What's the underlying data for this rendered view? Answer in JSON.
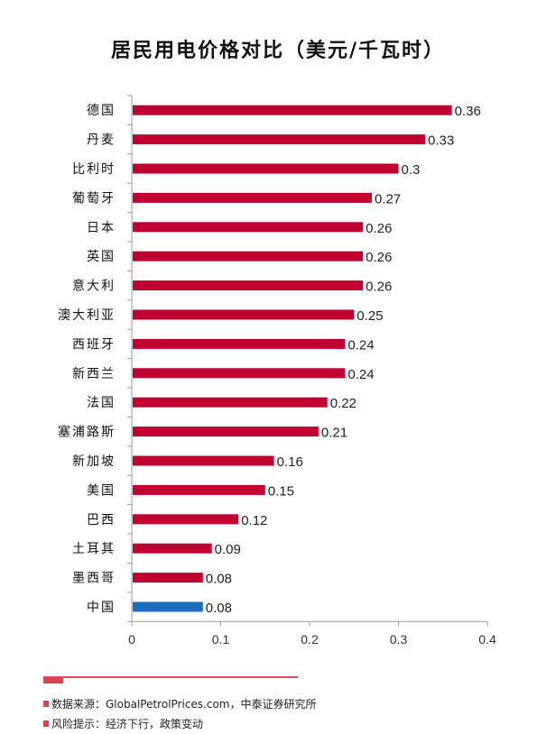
{
  "title": "居民用电价格对比（美元/千瓦时）",
  "colors": {
    "bar": "#c00030",
    "highlight": "#1a6ebd",
    "axis": "#999999"
  },
  "chart_data": {
    "type": "bar",
    "orientation": "horizontal",
    "title": "居民用电价格对比（美元/千瓦时）",
    "categories": [
      "德国",
      "丹麦",
      "比利时",
      "葡萄牙",
      "日本",
      "英国",
      "意大利",
      "澳大利亚",
      "西班牙",
      "新西兰",
      "法国",
      "塞浦路斯",
      "新加坡",
      "美国",
      "巴西",
      "土耳其",
      "墨西哥",
      "中国"
    ],
    "values": [
      0.36,
      0.33,
      0.3,
      0.27,
      0.26,
      0.26,
      0.26,
      0.25,
      0.24,
      0.24,
      0.22,
      0.21,
      0.16,
      0.15,
      0.12,
      0.09,
      0.08,
      0.08
    ],
    "value_labels": [
      "0.36",
      "0.33",
      "0.3",
      "0.27",
      "0.26",
      "0.26",
      "0.26",
      "0.25",
      "0.24",
      "0.24",
      "0.22",
      "0.21",
      "0.16",
      "0.15",
      "0.12",
      "0.09",
      "0.08",
      "0.08"
    ],
    "highlight_category": "中国",
    "xlim": [
      0,
      0.4
    ],
    "xticks": [
      "0",
      "0.1",
      "0.2",
      "0.3",
      "0.4"
    ],
    "xlabel": "",
    "ylabel": "",
    "grid": false
  },
  "footer": {
    "source": "数据来源：GlobalPetrolPrices.com，中泰证券研究所",
    "risk": "风险提示：经济下行，政策变动"
  }
}
